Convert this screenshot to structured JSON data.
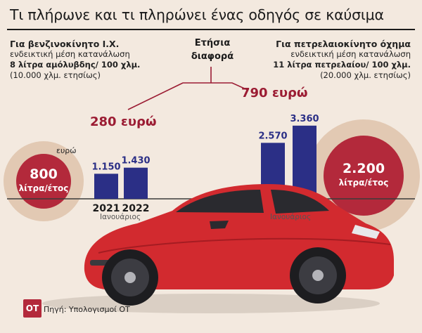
{
  "header": {
    "title": "Τι πλήρωνε και τι πληρώνει ένας οδηγός σε καύσιμα"
  },
  "left_panel": {
    "heading": "Για βενζινοκίνητο Ι.Χ.",
    "line1": "ενδεικτική μέση κατανάλωση",
    "line2": "8 λίτρα αμόλυβδης/ 100 χλμ.",
    "line3": "(10.000 χλμ. ετησίως)",
    "unit": "ευρώ",
    "circle_value": "800",
    "circle_unit": "λίτρα/έτος",
    "month_label": "Ιανουάριος"
  },
  "right_panel": {
    "heading": "Για πετρελαιοκίνητο όχημα",
    "line1": "ενδεικτική μέση κατανάλωση",
    "line2": "11 λίτρα πετρελαίου/ 100 χλμ.",
    "line3": "(20.000 χλμ. ετησίως)",
    "circle_value": "2.200",
    "circle_unit": "λίτρα/έτος",
    "month_label": "Ιανουάριος"
  },
  "center": {
    "line1": "Ετήσια",
    "line2": "διαφορά"
  },
  "differences": {
    "left": "280 ευρώ",
    "right": "790 ευρώ"
  },
  "footer": {
    "logo": "OT",
    "source": "Πηγή: Υπολογισμοί ΟΤ"
  },
  "colors": {
    "bar": "#2b2f86",
    "accent": "#9b1c33",
    "circle": "#b3293b",
    "background": "#f3e9df",
    "car": "#d22a2f"
  },
  "chart_data": [
    {
      "type": "bar",
      "categories": [
        "2021",
        "2022"
      ],
      "values": [
        1150,
        1430
      ],
      "value_labels": [
        "1.150",
        "1.430"
      ],
      "ylabel": "ευρώ"
    },
    {
      "type": "bar",
      "categories": [
        "2021",
        "2022"
      ],
      "values": [
        2570,
        3360
      ],
      "value_labels": [
        "2.570",
        "3.360"
      ]
    }
  ]
}
